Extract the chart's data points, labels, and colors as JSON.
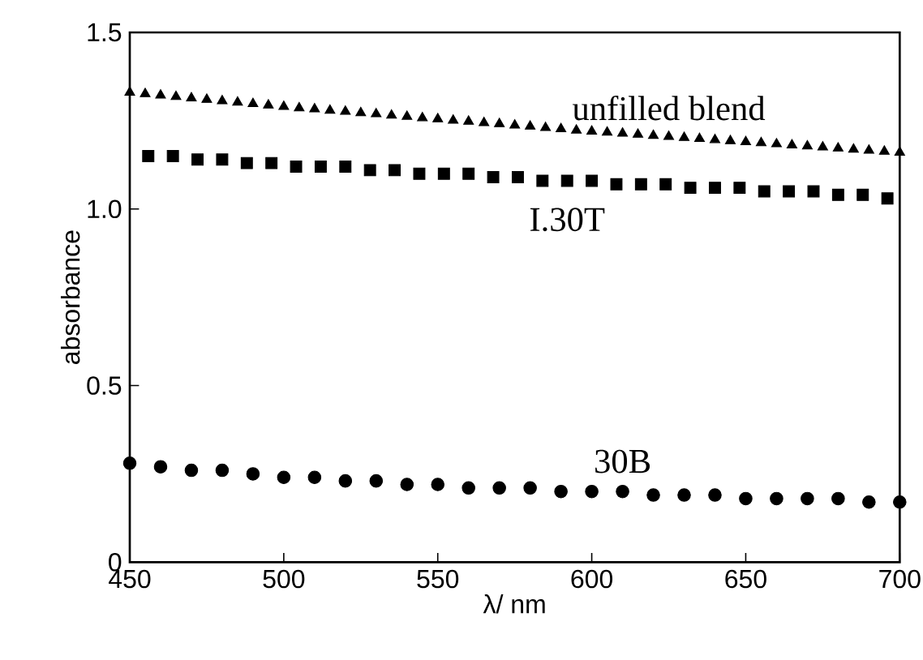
{
  "chart_data": {
    "type": "scatter",
    "xlabel": "λ/ nm",
    "ylabel": "absorbance",
    "xlim": [
      450,
      700
    ],
    "ylim": [
      0,
      1.5
    ],
    "xticks": [
      450,
      500,
      550,
      600,
      650,
      700
    ],
    "yticks": [
      0,
      {
        "value": 0.5,
        "label": "0.5"
      },
      {
        "value": 1,
        "label": "1.0"
      },
      1.5
    ],
    "grid": false,
    "series": [
      {
        "name": "unfilled blend",
        "color": "#000000",
        "marker": "triangle",
        "x": [
          450,
          455,
          460,
          465,
          470,
          475,
          480,
          485,
          490,
          495,
          500,
          505,
          510,
          515,
          520,
          525,
          530,
          535,
          540,
          545,
          550,
          555,
          560,
          565,
          570,
          575,
          580,
          585,
          590,
          595,
          600,
          605,
          610,
          615,
          620,
          625,
          630,
          635,
          640,
          645,
          650,
          655,
          660,
          665,
          670,
          675,
          680,
          685,
          690,
          695,
          700
        ],
        "values": [
          1.33,
          1.326,
          1.322,
          1.318,
          1.314,
          1.31,
          1.306,
          1.302,
          1.298,
          1.294,
          1.29,
          1.286,
          1.283,
          1.279,
          1.276,
          1.272,
          1.269,
          1.265,
          1.262,
          1.258,
          1.255,
          1.251,
          1.248,
          1.244,
          1.241,
          1.237,
          1.234,
          1.23,
          1.227,
          1.223,
          1.22,
          1.217,
          1.214,
          1.211,
          1.208,
          1.205,
          1.202,
          1.199,
          1.196,
          1.193,
          1.19,
          1.187,
          1.184,
          1.181,
          1.178,
          1.175,
          1.172,
          1.169,
          1.166,
          1.163,
          1.16
        ]
      },
      {
        "name": "I.30T",
        "color": "#000000",
        "marker": "square",
        "x": [
          456,
          464,
          472,
          480,
          488,
          496,
          504,
          512,
          520,
          528,
          536,
          544,
          552,
          560,
          568,
          576,
          584,
          592,
          600,
          608,
          616,
          624,
          632,
          640,
          648,
          656,
          664,
          672,
          680,
          688,
          696
        ],
        "values": [
          1.15,
          1.15,
          1.14,
          1.14,
          1.13,
          1.13,
          1.12,
          1.12,
          1.12,
          1.11,
          1.11,
          1.1,
          1.1,
          1.1,
          1.09,
          1.09,
          1.08,
          1.08,
          1.08,
          1.07,
          1.07,
          1.07,
          1.06,
          1.06,
          1.06,
          1.05,
          1.05,
          1.05,
          1.04,
          1.04,
          1.03
        ]
      },
      {
        "name": "30B",
        "color": "#000000",
        "marker": "circle",
        "x": [
          450,
          460,
          470,
          480,
          490,
          500,
          510,
          520,
          530,
          540,
          550,
          560,
          570,
          580,
          590,
          600,
          610,
          620,
          630,
          640,
          650,
          660,
          670,
          680,
          690,
          700
        ],
        "values": [
          0.28,
          0.27,
          0.26,
          0.26,
          0.25,
          0.24,
          0.24,
          0.23,
          0.23,
          0.22,
          0.22,
          0.21,
          0.21,
          0.21,
          0.2,
          0.2,
          0.2,
          0.19,
          0.19,
          0.19,
          0.18,
          0.18,
          0.18,
          0.18,
          0.17,
          0.17
        ]
      }
    ]
  }
}
